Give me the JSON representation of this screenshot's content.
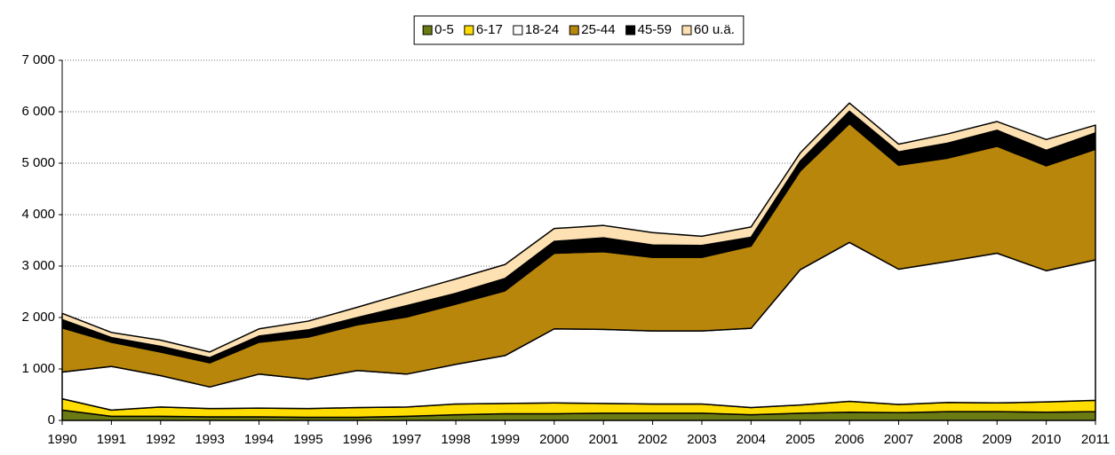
{
  "chart_data": {
    "type": "stacked-area",
    "categories": [
      "1990",
      "1991",
      "1992",
      "1993",
      "1994",
      "1995",
      "1996",
      "1997",
      "1998",
      "1999",
      "2000",
      "2001",
      "2002",
      "2003",
      "2004",
      "2005",
      "2006",
      "2007",
      "2008",
      "2009",
      "2010",
      "2011"
    ],
    "series": [
      {
        "name": "0-5",
        "color": "#6b7a12",
        "values": [
          200,
          80,
          80,
          70,
          70,
          60,
          60,
          80,
          110,
          130,
          130,
          140,
          140,
          140,
          110,
          140,
          160,
          150,
          170,
          170,
          160,
          170
        ]
      },
      {
        "name": "6-17",
        "color": "#ffdd00",
        "values": [
          220,
          120,
          180,
          160,
          170,
          170,
          190,
          180,
          210,
          200,
          210,
          190,
          180,
          180,
          140,
          160,
          210,
          160,
          180,
          170,
          200,
          220
        ]
      },
      {
        "name": "18-24",
        "color": "#ffffff",
        "values": [
          520,
          850,
          610,
          420,
          660,
          570,
          720,
          640,
          770,
          930,
          1440,
          1440,
          1420,
          1420,
          1540,
          2630,
          3090,
          2630,
          2740,
          2910,
          2550,
          2730
        ]
      },
      {
        "name": "25-44",
        "color": "#b8860b",
        "values": [
          860,
          470,
          460,
          470,
          620,
          820,
          890,
          1110,
          1170,
          1260,
          1470,
          1510,
          1430,
          1430,
          1600,
          1920,
          2310,
          2020,
          2010,
          2080,
          2040,
          2150
        ]
      },
      {
        "name": "45-59",
        "color": "#000000",
        "values": [
          160,
          90,
          110,
          100,
          120,
          140,
          140,
          220,
          210,
          240,
          230,
          270,
          240,
          230,
          170,
          190,
          240,
          260,
          290,
          310,
          300,
          320
        ]
      },
      {
        "name": "60 u.ä.",
        "color": "#fde1b2",
        "values": [
          120,
          100,
          120,
          110,
          140,
          170,
          200,
          250,
          280,
          270,
          250,
          240,
          240,
          180,
          200,
          160,
          160,
          150,
          180,
          170,
          210,
          150
        ]
      }
    ],
    "ylim": [
      0,
      7000
    ],
    "yticks": [
      0,
      {
        "value": 1000,
        "label": "1 000"
      },
      {
        "value": 2000,
        "label": "2 000"
      },
      {
        "value": 3000,
        "label": "3 000"
      },
      {
        "value": 4000,
        "label": "4 000"
      },
      {
        "value": 5000,
        "label": "5 000"
      },
      {
        "value": 6000,
        "label": "6 000"
      },
      {
        "value": 7000,
        "label": "7 000"
      }
    ],
    "grid": true,
    "legend": "top"
  }
}
